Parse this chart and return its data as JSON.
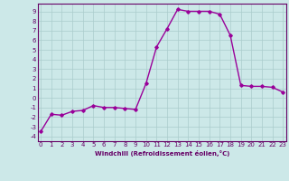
{
  "x": [
    0,
    1,
    2,
    3,
    4,
    5,
    6,
    7,
    8,
    9,
    10,
    11,
    12,
    13,
    14,
    15,
    16,
    17,
    18,
    19,
    20,
    21,
    22,
    23
  ],
  "y": [
    -3.5,
    -1.7,
    -1.8,
    -1.4,
    -1.3,
    -0.8,
    -1.0,
    -1.0,
    -1.1,
    -1.2,
    1.5,
    5.3,
    7.2,
    9.2,
    9.0,
    9.0,
    9.0,
    8.7,
    6.5,
    1.3,
    1.2,
    1.2,
    1.1,
    0.6
  ],
  "line_color": "#990099",
  "marker": "D",
  "marker_size": 1.8,
  "bg_color": "#cce8e8",
  "grid_color": "#aacccc",
  "xlabel": "Windchill (Refroidissement éolien,°C)",
  "ylabel_ticks": [
    "-4",
    "-3",
    "-2",
    "-1",
    "0",
    "1",
    "2",
    "3",
    "4",
    "5",
    "6",
    "7",
    "8",
    "9"
  ],
  "yticks": [
    -4,
    -3,
    -2,
    -1,
    0,
    1,
    2,
    3,
    4,
    5,
    6,
    7,
    8,
    9
  ],
  "xticks": [
    0,
    1,
    2,
    3,
    4,
    5,
    6,
    7,
    8,
    9,
    10,
    11,
    12,
    13,
    14,
    15,
    16,
    17,
    18,
    19,
    20,
    21,
    22,
    23
  ],
  "xlim": [
    -0.3,
    23.3
  ],
  "ylim": [
    -4.5,
    9.8
  ],
  "axis_color": "#660066",
  "tick_color": "#660066",
  "label_fontsize": 5.0,
  "tick_fontsize": 5.0,
  "linewidth": 1.0
}
